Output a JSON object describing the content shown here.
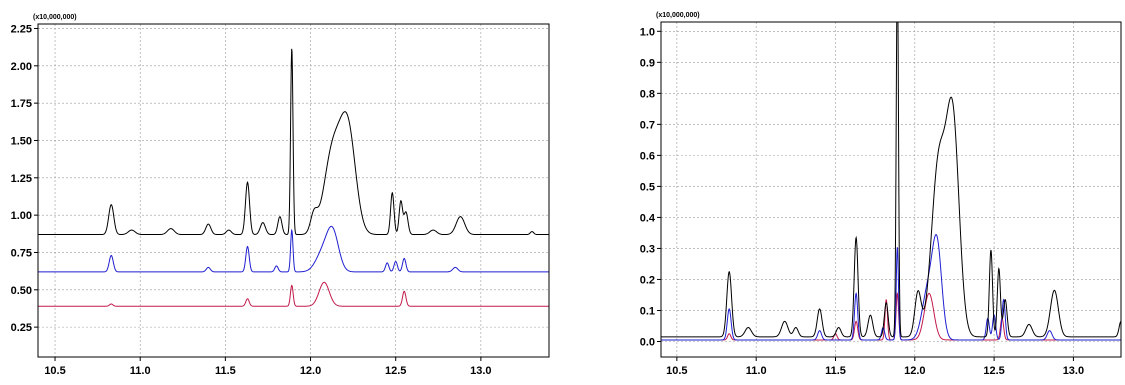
{
  "chart_data": [
    {
      "type": "line",
      "multiplier_label": "(x10,000,000)",
      "xlim": [
        10.4,
        13.4
      ],
      "ylim": [
        0.05,
        2.28
      ],
      "x_ticks": [
        "10.5",
        "11.0",
        "11.5",
        "12.0",
        "12.5",
        "13.0"
      ],
      "y_ticks": [
        "0.25",
        "0.50",
        "0.75",
        "1.00",
        "1.25",
        "1.50",
        "1.75",
        "2.00",
        "2.25"
      ],
      "grid": true,
      "series": [
        {
          "color": "#000000",
          "baseline": 0.87,
          "peaks": [
            [
              10.83,
              0.2,
              0.015
            ],
            [
              10.95,
              0.03,
              0.02
            ],
            [
              11.18,
              0.04,
              0.02
            ],
            [
              11.4,
              0.07,
              0.015
            ],
            [
              11.52,
              0.03,
              0.015
            ],
            [
              11.63,
              0.35,
              0.012
            ],
            [
              11.72,
              0.08,
              0.015
            ],
            [
              11.82,
              0.12,
              0.012
            ],
            [
              11.89,
              1.25,
              0.007
            ],
            [
              12.02,
              0.12,
              0.02
            ],
            [
              12.13,
              0.55,
              0.05
            ],
            [
              12.22,
              0.68,
              0.045
            ],
            [
              12.48,
              0.28,
              0.01
            ],
            [
              12.53,
              0.22,
              0.01
            ],
            [
              12.56,
              0.15,
              0.012
            ],
            [
              12.72,
              0.03,
              0.02
            ],
            [
              12.88,
              0.12,
              0.025
            ],
            [
              13.3,
              0.02,
              0.01
            ]
          ]
        },
        {
          "color": "#1f1fd0",
          "baseline": 0.62,
          "peaks": [
            [
              10.83,
              0.11,
              0.012
            ],
            [
              11.4,
              0.03,
              0.012
            ],
            [
              11.63,
              0.17,
              0.01
            ],
            [
              11.8,
              0.04,
              0.01
            ],
            [
              11.89,
              0.28,
              0.007
            ],
            [
              12.07,
              0.12,
              0.04
            ],
            [
              12.13,
              0.26,
              0.035
            ],
            [
              12.45,
              0.06,
              0.01
            ],
            [
              12.5,
              0.07,
              0.01
            ],
            [
              12.55,
              0.09,
              0.01
            ],
            [
              12.85,
              0.03,
              0.015
            ]
          ]
        },
        {
          "color": "#c21a4a",
          "baseline": 0.39,
          "peaks": [
            [
              10.83,
              0.015,
              0.01
            ],
            [
              11.63,
              0.05,
              0.01
            ],
            [
              11.89,
              0.14,
              0.008
            ],
            [
              12.08,
              0.16,
              0.03
            ],
            [
              12.55,
              0.1,
              0.01
            ]
          ]
        }
      ]
    },
    {
      "type": "line",
      "multiplier_label": "(x10,000,000)",
      "xlim": [
        10.4,
        13.3
      ],
      "ylim": [
        -0.05,
        1.03
      ],
      "x_ticks": [
        "10.5",
        "11.0",
        "11.5",
        "12.0",
        "12.5",
        "13.0"
      ],
      "y_ticks": [
        "0.0",
        "0.1",
        "0.2",
        "0.3",
        "0.4",
        "0.5",
        "0.6",
        "0.7",
        "0.8",
        "0.9",
        "1.0"
      ],
      "grid": true,
      "series": [
        {
          "color": "#000000",
          "baseline": 0.015,
          "peaks": [
            [
              10.83,
              0.21,
              0.015
            ],
            [
              10.95,
              0.03,
              0.02
            ],
            [
              11.18,
              0.05,
              0.02
            ],
            [
              11.25,
              0.03,
              0.015
            ],
            [
              11.4,
              0.09,
              0.015
            ],
            [
              11.52,
              0.03,
              0.015
            ],
            [
              11.63,
              0.32,
              0.012
            ],
            [
              11.72,
              0.07,
              0.015
            ],
            [
              11.82,
              0.11,
              0.012
            ],
            [
              11.89,
              1.2,
              0.007
            ],
            [
              12.02,
              0.14,
              0.02
            ],
            [
              12.15,
              0.55,
              0.045
            ],
            [
              12.24,
              0.68,
              0.04
            ],
            [
              12.48,
              0.28,
              0.01
            ],
            [
              12.53,
              0.22,
              0.01
            ],
            [
              12.57,
              0.12,
              0.012
            ],
            [
              12.72,
              0.04,
              0.02
            ],
            [
              12.88,
              0.15,
              0.025
            ],
            [
              13.3,
              0.05,
              0.012
            ]
          ]
        },
        {
          "color": "#1f1fd0",
          "baseline": 0.005,
          "peaks": [
            [
              10.83,
              0.1,
              0.012
            ],
            [
              11.4,
              0.03,
              0.012
            ],
            [
              11.63,
              0.15,
              0.01
            ],
            [
              11.8,
              0.04,
              0.01
            ],
            [
              11.89,
              0.3,
              0.007
            ],
            [
              12.08,
              0.15,
              0.035
            ],
            [
              12.14,
              0.3,
              0.03
            ],
            [
              12.46,
              0.07,
              0.01
            ],
            [
              12.5,
              0.08,
              0.01
            ],
            [
              12.56,
              0.13,
              0.01
            ],
            [
              12.85,
              0.03,
              0.015
            ]
          ]
        },
        {
          "color": "#c21a4a",
          "baseline": 0.005,
          "peaks": [
            [
              10.83,
              0.02,
              0.01
            ],
            [
              11.5,
              0.02,
              0.01
            ],
            [
              11.63,
              0.06,
              0.01
            ],
            [
              11.82,
              0.13,
              0.008
            ],
            [
              11.89,
              0.15,
              0.008
            ],
            [
              12.09,
              0.15,
              0.03
            ],
            [
              12.55,
              0.07,
              0.01
            ]
          ]
        }
      ]
    }
  ]
}
